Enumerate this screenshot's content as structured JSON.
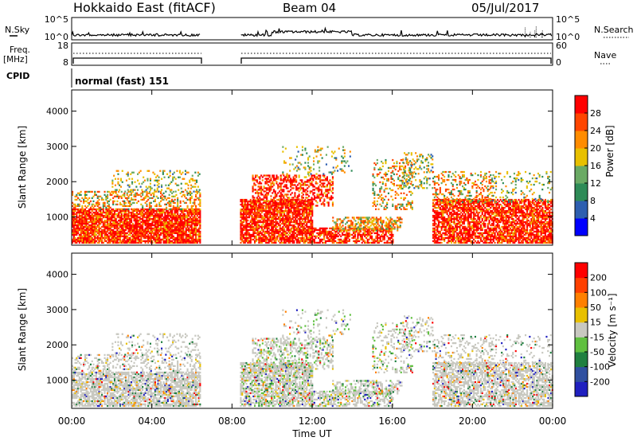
{
  "header": {
    "station": "Hokkaido East (fitACF)",
    "beam": "Beam 04",
    "date": "05/Jul/2017"
  },
  "mini_panels": {
    "nsky_label": "N.Sky",
    "nsky_ticks": [
      "10^5",
      "10^0"
    ],
    "nsearch_label": "N.Search",
    "nsearch_ticks": [
      "10^5",
      "10^0"
    ],
    "freq_label": "Freq.",
    "freq_unit": "[MHz]",
    "freq_ticks": [
      "18",
      "8"
    ],
    "nave_label": "Nave",
    "nave_ticks": [
      "60",
      "0"
    ],
    "cpid_label": "CPID",
    "cpid_value": "normal (fast) 151"
  },
  "chart_data": [
    {
      "type": "heatmap",
      "name": "power",
      "ylabel": "Slant Range [km]",
      "xlabel": "",
      "y_ticks": [
        "1000",
        "2000",
        "3000",
        "4000"
      ],
      "ylim": [
        200,
        4600
      ],
      "x_range_hours": [
        0,
        24
      ],
      "data_gap_hours": [
        6.4,
        8.4
      ],
      "colorbar": {
        "label": "Power [dB]",
        "ticks": [
          "4",
          "8",
          "12",
          "16",
          "20",
          "24",
          "28"
        ],
        "range": [
          0,
          32
        ],
        "colors": [
          "#0000ff",
          "#2e5fb0",
          "#2e8b57",
          "#6aaa64",
          "#e8c000",
          "#ff8c00",
          "#ff4500",
          "#ff0000"
        ]
      }
    },
    {
      "type": "heatmap",
      "name": "velocity",
      "ylabel": "Slant Range [km]",
      "xlabel": "Time UT",
      "y_ticks": [
        "1000",
        "2000",
        "3000",
        "4000"
      ],
      "ylim": [
        200,
        4600
      ],
      "x_range_hours": [
        0,
        24
      ],
      "x_ticks": [
        "00:00",
        "04:00",
        "08:00",
        "12:00",
        "16:00",
        "20:00",
        "00:00"
      ],
      "data_gap_hours": [
        6.4,
        8.4
      ],
      "colorbar": {
        "label": "Velocity [m s⁻¹]",
        "ticks": [
          "200",
          "100",
          "50",
          "15",
          "-15",
          "-50",
          "-100",
          "-200"
        ],
        "colors": [
          "#2020c0",
          "#3050a0",
          "#208040",
          "#60c040",
          "#c8c8c0",
          "#e8c000",
          "#ff8000",
          "#ff4000",
          "#ff0000"
        ]
      }
    }
  ]
}
